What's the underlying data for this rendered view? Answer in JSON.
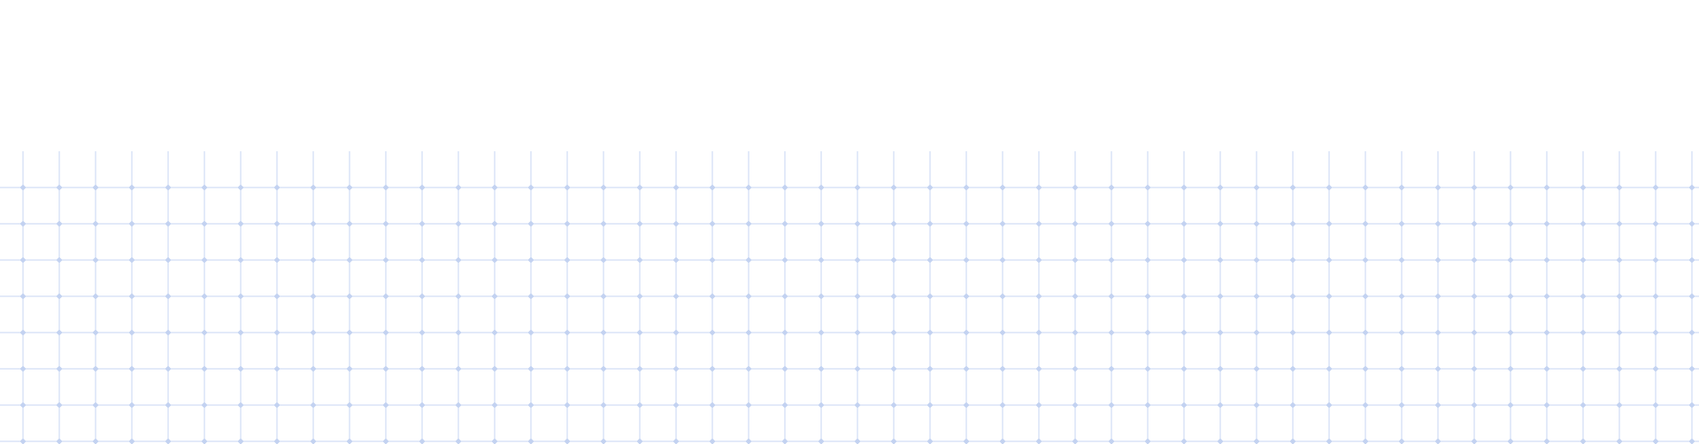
{
  "pattern": {
    "type": "dot-grid",
    "columns": 47,
    "rows": 8,
    "line_color": "#c7d6f3",
    "dot_color": "#c3d2f1",
    "background_color": "#ffffff"
  }
}
